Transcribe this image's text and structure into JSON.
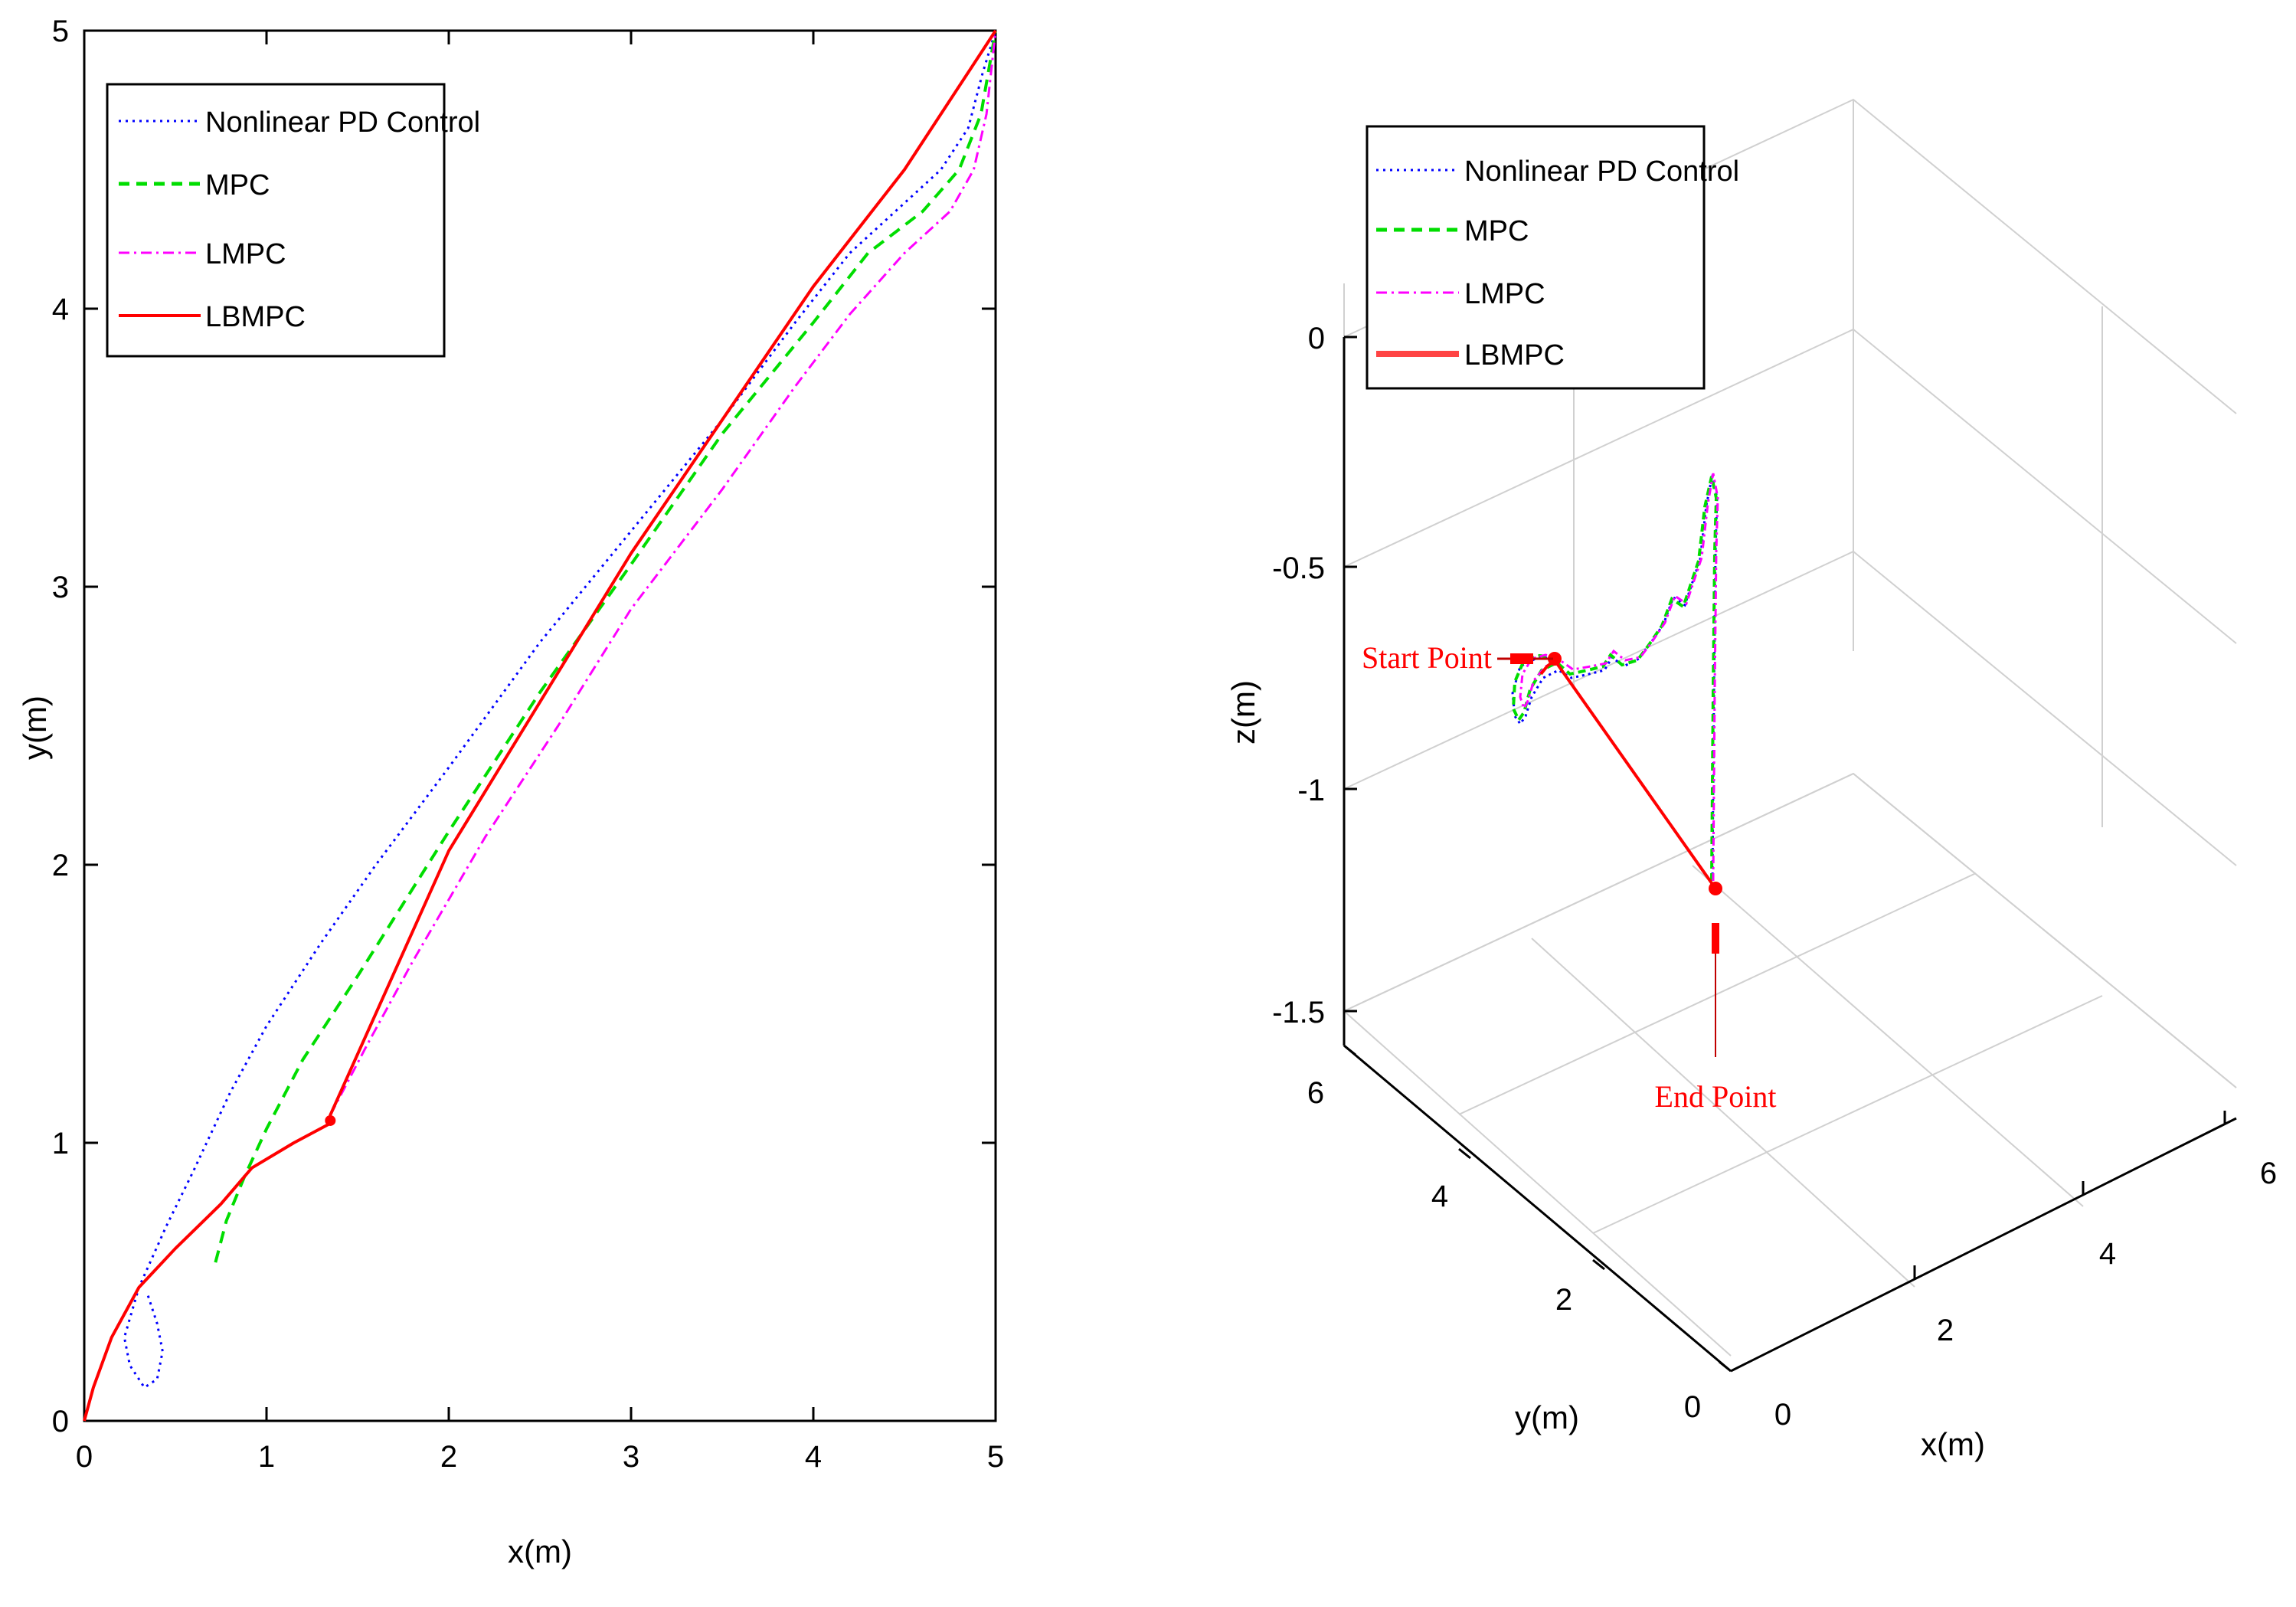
{
  "colors": {
    "pd": "#0000ff",
    "mpc": "#00dd00",
    "lmpc": "#ff00ff",
    "lbmpc": "#ff0000",
    "grid": "#d0d0d0"
  },
  "chart_data": [
    {
      "type": "line",
      "title": "",
      "xlabel": "x(m)",
      "ylabel": "y(m)",
      "xlim": [
        0,
        5
      ],
      "ylim": [
        0,
        5
      ],
      "xticks": [
        "0",
        "1",
        "2",
        "3",
        "4",
        "5"
      ],
      "yticks": [
        "0",
        "1",
        "2",
        "3",
        "4",
        "5"
      ],
      "grid": false,
      "legend_position": "top-left",
      "series": [
        {
          "name": "Nonlinear PD Control",
          "style": "dotted",
          "color": "#0000ff",
          "points": [
            [
              0.35,
              0.45
            ],
            [
              0.4,
              0.35
            ],
            [
              0.43,
              0.25
            ],
            [
              0.4,
              0.15
            ],
            [
              0.33,
              0.12
            ],
            [
              0.25,
              0.2
            ],
            [
              0.22,
              0.3
            ],
            [
              0.3,
              0.48
            ],
            [
              0.45,
              0.7
            ],
            [
              0.6,
              0.9
            ],
            [
              0.8,
              1.18
            ],
            [
              1.0,
              1.42
            ],
            [
              1.3,
              1.72
            ],
            [
              1.6,
              2.0
            ],
            [
              2.0,
              2.35
            ],
            [
              2.5,
              2.8
            ],
            [
              3.0,
              3.2
            ],
            [
              3.5,
              3.6
            ],
            [
              3.9,
              3.95
            ],
            [
              4.2,
              4.2
            ],
            [
              4.5,
              4.38
            ],
            [
              4.7,
              4.5
            ],
            [
              4.85,
              4.65
            ],
            [
              4.93,
              4.85
            ],
            [
              5.0,
              5.0
            ]
          ]
        },
        {
          "name": "MPC",
          "style": "dashed",
          "color": "#00dd00",
          "points": [
            [
              0.72,
              0.57
            ],
            [
              0.78,
              0.72
            ],
            [
              0.88,
              0.88
            ],
            [
              1.0,
              1.05
            ],
            [
              1.2,
              1.3
            ],
            [
              1.5,
              1.6
            ],
            [
              2.0,
              2.12
            ],
            [
              2.5,
              2.62
            ],
            [
              3.0,
              3.08
            ],
            [
              3.5,
              3.55
            ],
            [
              4.0,
              3.95
            ],
            [
              4.3,
              4.2
            ],
            [
              4.6,
              4.35
            ],
            [
              4.8,
              4.5
            ],
            [
              4.92,
              4.7
            ],
            [
              5.0,
              5.0
            ]
          ]
        },
        {
          "name": "LMPC",
          "style": "dashdot",
          "color": "#ff00ff",
          "points": [
            [
              1.35,
              1.1
            ],
            [
              1.55,
              1.35
            ],
            [
              1.8,
              1.65
            ],
            [
              2.2,
              2.1
            ],
            [
              2.6,
              2.5
            ],
            [
              3.0,
              2.92
            ],
            [
              3.5,
              3.35
            ],
            [
              3.9,
              3.72
            ],
            [
              4.2,
              3.98
            ],
            [
              4.5,
              4.2
            ],
            [
              4.75,
              4.35
            ],
            [
              4.88,
              4.5
            ],
            [
              4.95,
              4.7
            ],
            [
              5.0,
              5.0
            ]
          ]
        },
        {
          "name": "LBMPC",
          "style": "solid",
          "color": "#ff0000",
          "points": [
            [
              0.0,
              0.0
            ],
            [
              0.05,
              0.12
            ],
            [
              0.15,
              0.3
            ],
            [
              0.3,
              0.48
            ],
            [
              0.5,
              0.62
            ],
            [
              0.75,
              0.78
            ],
            [
              0.92,
              0.91
            ],
            [
              1.15,
              1.0
            ],
            [
              1.35,
              1.07
            ],
            [
              1.35,
              1.1
            ],
            [
              2.0,
              2.05
            ],
            [
              3.0,
              3.12
            ],
            [
              4.0,
              4.08
            ],
            [
              4.5,
              4.5
            ],
            [
              5.0,
              5.0
            ]
          ]
        }
      ]
    },
    {
      "type": "line",
      "title": "",
      "xlabel": "x(m)",
      "ylabel": "y(m)",
      "zlabel": "z(m)",
      "xlim": [
        0,
        6
      ],
      "ylim": [
        0,
        6
      ],
      "zlim": [
        -1.5,
        0
      ],
      "xticks": [
        "0",
        "2",
        "4",
        "6"
      ],
      "yticks": [
        "0",
        "2",
        "4",
        "6"
      ],
      "zticks": [
        "0",
        "-0.5",
        "-1",
        "-1.5"
      ],
      "grid": true,
      "legend_position": "top-left",
      "annotations": [
        "Start Point",
        "End Point"
      ],
      "series": [
        {
          "name": "Nonlinear PD Control",
          "style": "dotted",
          "color": "#0000ff"
        },
        {
          "name": "MPC",
          "style": "dashed",
          "color": "#00dd00"
        },
        {
          "name": "LMPC",
          "style": "dashdot",
          "color": "#ff00ff"
        },
        {
          "name": "LBMPC",
          "style": "solid",
          "color": "#ff0000"
        }
      ]
    }
  ]
}
